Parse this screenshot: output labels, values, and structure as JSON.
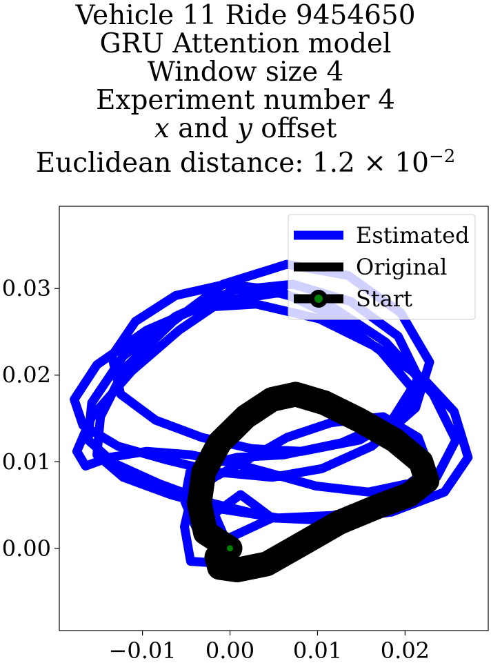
{
  "chart_data": {
    "type": "line",
    "title_lines": [
      "Vehicle 11 Ride 9454650",
      "GRU Attention model",
      "Window size 4",
      "Experiment number 4",
      "",
      ""
    ],
    "title_rich": {
      "offset_x": "x",
      "offset_and": " and ",
      "offset_y": "y",
      "offset_suffix": " offset",
      "distance_prefix": "Euclidean distance: 1.2",
      "distance_times": " × 10",
      "distance_exp": "−2"
    },
    "xlabel": "",
    "ylabel": "",
    "xlim": [
      -0.0195,
      0.0295
    ],
    "ylim": [
      -0.0095,
      0.0395
    ],
    "xticks": [
      -0.01,
      0.0,
      0.01,
      0.02
    ],
    "xtick_labels": [
      "−0.01",
      "0.00",
      "0.01",
      "0.02"
    ],
    "yticks": [
      0.0,
      0.01,
      0.02,
      0.03
    ],
    "ytick_labels": [
      "0.00",
      "0.01",
      "0.02",
      "0.03"
    ],
    "grid": false,
    "legend_position": "top-right",
    "series": [
      {
        "name": "Estimated",
        "color": "#0000ff",
        "x": [
          0.0,
          -0.0045,
          -0.0052,
          -0.0044,
          -0.0018,
          0.0025,
          0.0065,
          0.0115,
          0.0175,
          0.0215,
          0.0228,
          0.0205,
          0.0158,
          0.0098,
          0.0052,
          0.0005,
          -0.0045,
          -0.0095,
          -0.0138,
          -0.0165,
          -0.0175,
          -0.0158,
          -0.0112,
          -0.0058,
          -0.001,
          0.0055,
          0.0118,
          0.0178,
          0.0232,
          0.0258,
          0.0236,
          0.0185,
          0.0118,
          0.0055,
          -0.0008,
          -0.0068,
          -0.0122,
          -0.0152,
          -0.0148,
          -0.012,
          -0.0065,
          -0.0008,
          0.0065,
          0.0135,
          0.0195,
          0.0228,
          0.0212,
          0.0162,
          0.0105,
          0.0048,
          -0.0015,
          -0.0072,
          -0.0128,
          -0.0168,
          -0.0178,
          -0.0152,
          -0.0095,
          -0.0035,
          0.003,
          0.0102,
          0.0168,
          0.0222,
          0.0256,
          0.0272,
          0.0245,
          0.0185,
          0.0118,
          0.0048,
          -0.002,
          -0.0082,
          -0.0132,
          -0.0162,
          -0.0158,
          -0.0122,
          -0.0062,
          0.0005,
          0.0072,
          0.0138,
          0.0192,
          0.0215,
          0.0198,
          0.0148,
          0.0082,
          0.0025,
          -0.0032,
          -0.0085,
          -0.0125,
          -0.0135,
          -0.0108,
          -0.0062,
          -0.0005,
          0.0055,
          0.0118,
          0.0172,
          0.0208,
          0.0185,
          0.0128,
          0.0062,
          0.0008,
          -0.0045,
          -0.0052,
          -0.0038,
          -0.0005,
          0.0048,
          0.0012,
          -0.0018,
          -0.0005,
          0.0
        ],
        "y": [
          -0.0018,
          -0.0015,
          0.0025,
          0.006,
          0.0082,
          0.0105,
          0.0128,
          0.0145,
          0.0152,
          0.0128,
          0.0092,
          0.0075,
          0.0065,
          0.0072,
          0.0085,
          0.0098,
          0.0108,
          0.0112,
          0.0105,
          0.0095,
          0.0112,
          0.0152,
          0.0205,
          0.0252,
          0.0285,
          0.0295,
          0.0278,
          0.0238,
          0.0178,
          0.0125,
          0.0082,
          0.0055,
          0.0038,
          0.0035,
          0.0045,
          0.0062,
          0.0082,
          0.0108,
          0.0152,
          0.0208,
          0.0262,
          0.0305,
          0.0328,
          0.0315,
          0.0272,
          0.0215,
          0.0162,
          0.0118,
          0.0092,
          0.0082,
          0.0088,
          0.0102,
          0.0118,
          0.0142,
          0.0172,
          0.0212,
          0.0252,
          0.0278,
          0.0282,
          0.0265,
          0.0232,
          0.0195,
          0.0158,
          0.0105,
          0.0065,
          0.0042,
          0.0032,
          0.0035,
          0.0052,
          0.0075,
          0.0098,
          0.0125,
          0.0168,
          0.0222,
          0.0268,
          0.0298,
          0.0305,
          0.0285,
          0.0245,
          0.0198,
          0.0155,
          0.0125,
          0.0112,
          0.0115,
          0.0128,
          0.0148,
          0.0178,
          0.0222,
          0.0262,
          0.0292,
          0.0305,
          0.0298,
          0.0268,
          0.0228,
          0.0185,
          0.0148,
          0.0122,
          0.0108,
          0.0105,
          0.0092,
          0.0055,
          0.0022,
          0.001,
          0.0035,
          0.0062,
          0.004,
          0.001,
          -0.0012
        ]
      },
      {
        "name": "Original",
        "color": "#000000",
        "x": [
          0.0,
          -0.0028,
          -0.0035,
          -0.003,
          -0.0012,
          0.0018,
          0.0048,
          0.0075,
          0.0108,
          0.0148,
          0.0188,
          0.0218,
          0.0225,
          0.0205,
          0.0168,
          0.0125,
          0.0082,
          0.0042,
          0.0008,
          -0.0012,
          -0.0015,
          0.0
        ],
        "y": [
          0.0,
          0.0018,
          0.0052,
          0.0088,
          0.0122,
          0.0152,
          0.0172,
          0.0178,
          0.0168,
          0.0148,
          0.0125,
          0.01,
          0.0078,
          0.0062,
          0.0048,
          0.003,
          0.0005,
          -0.0018,
          -0.0025,
          -0.0022,
          -0.001,
          0.0
        ]
      }
    ],
    "start": {
      "name": "Start",
      "x": 0.0,
      "y": 0.0,
      "marker_color": "#008000",
      "edge_color": "#000000"
    },
    "legend": [
      "Estimated",
      "Original",
      "Start"
    ]
  }
}
